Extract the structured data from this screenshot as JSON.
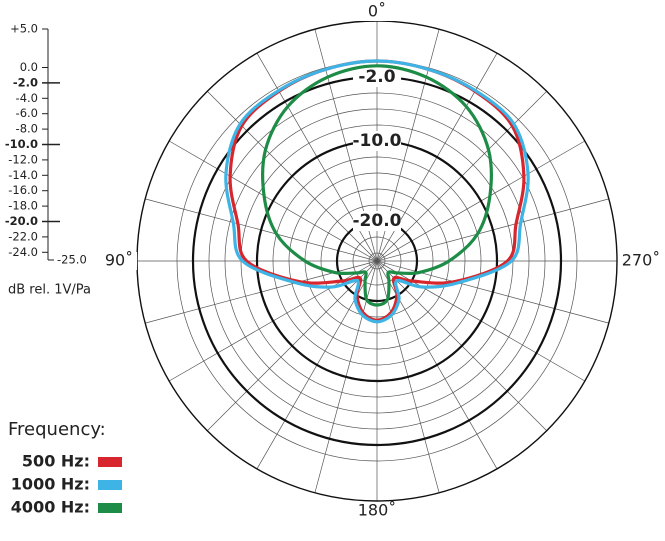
{
  "chart_data": {
    "type": "polar",
    "axis_label": "dB rel. 1V/Pa",
    "legend_title": "Frequency:",
    "rlim": [
      -25,
      5
    ],
    "rticks": [
      {
        "value": 5,
        "label": "+5.0"
      },
      {
        "value": 0,
        "label": "0.0"
      },
      {
        "value": -2,
        "label": "-2.0",
        "bold": true
      },
      {
        "value": -4,
        "label": "-4.0"
      },
      {
        "value": -6,
        "label": "-6.0"
      },
      {
        "value": -8,
        "label": "-8.0"
      },
      {
        "value": -10,
        "label": "-10.0",
        "bold": true
      },
      {
        "value": -12,
        "label": "-12.0"
      },
      {
        "value": -14,
        "label": "-14.0"
      },
      {
        "value": -16,
        "label": "-16.0"
      },
      {
        "value": -18,
        "label": "-18.0"
      },
      {
        "value": -20,
        "label": "-20.0",
        "bold": true
      },
      {
        "value": -22,
        "label": "-22.0"
      },
      {
        "value": -24,
        "label": "-24.0"
      },
      {
        "value": -25,
        "label": "-25.0"
      }
    ],
    "ring_labels": [
      {
        "value": -2,
        "label": "-2.0"
      },
      {
        "value": -10,
        "label": "-10.0"
      },
      {
        "value": -20,
        "label": "-20.0"
      }
    ],
    "angle_labels": [
      {
        "value": 0,
        "label": "0˚"
      },
      {
        "value": 90,
        "label": "90˚"
      },
      {
        "value": 180,
        "label": "180˚"
      },
      {
        "value": 270,
        "label": "270˚"
      }
    ],
    "angles": [
      0,
      15,
      30,
      45,
      60,
      75,
      90,
      105,
      120,
      135,
      150,
      165,
      180,
      195,
      210,
      225,
      240,
      255,
      270,
      285,
      300,
      315,
      330,
      345
    ],
    "series": [
      {
        "name": "500 Hz:",
        "color": "#d7262e",
        "values": [
          0,
          -0.2,
          -0.5,
          -1.1,
          -3.8,
          -7,
          -8.7,
          -15,
          -20,
          -22,
          -20,
          -18.3,
          -17.6,
          -18.3,
          -20,
          -22,
          -20,
          -15,
          -8.7,
          -7,
          -3.8,
          -1.1,
          -0.5,
          -0.2
        ]
      },
      {
        "name": "1000 Hz:",
        "color": "#3db4e5",
        "values": [
          0,
          -0.2,
          -0.4,
          -0.8,
          -3.2,
          -6.4,
          -8.2,
          -14.5,
          -18.5,
          -21.5,
          -19.5,
          -18,
          -17.4,
          -18,
          -19.5,
          -21.5,
          -18.5,
          -14.5,
          -8.2,
          -6.4,
          -3.2,
          -0.8,
          -0.4,
          -0.2
        ]
      },
      {
        "name": "4000 Hz:",
        "color": "#1d8c46",
        "values": [
          -0.6,
          -1.2,
          -2.7,
          -5.3,
          -8.7,
          -12,
          -16,
          -19.5,
          -22,
          -23,
          -22,
          -20,
          -19.5,
          -20,
          -22,
          -23,
          -22,
          -19.5,
          -16,
          -12,
          -8.7,
          -5.3,
          -2.7,
          -1.2
        ]
      }
    ]
  }
}
